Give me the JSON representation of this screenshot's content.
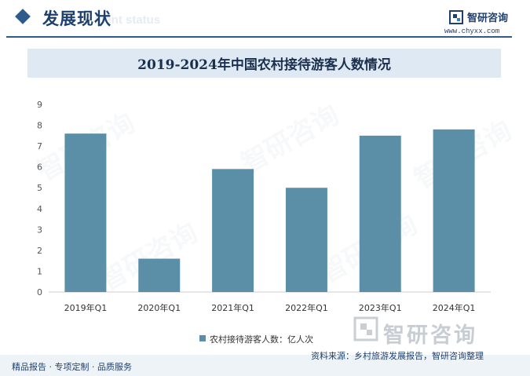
{
  "header": {
    "section_title": "发展现状",
    "section_ghost": "ment status",
    "brand_name": "智研咨询",
    "brand_url": "www.chyxx.com"
  },
  "watermark_text": "智研咨询",
  "chart_data": {
    "type": "bar",
    "title": "2019-2024年中国农村接待游客人数情况",
    "categories": [
      "2019年Q1",
      "2020年Q1",
      "2021年Q1",
      "2022年Q1",
      "2023年Q1",
      "2024年Q1"
    ],
    "series": [
      {
        "name": "农村接待游客人数：亿人次",
        "values": [
          7.6,
          1.6,
          5.9,
          5.0,
          7.5,
          7.8
        ],
        "color": "#5b8fa8"
      }
    ],
    "ylim": [
      0,
      9
    ],
    "yticks": [
      0,
      1,
      2,
      3,
      4,
      5,
      6,
      7,
      8,
      9
    ],
    "grid": false,
    "legend_position": "bottom"
  },
  "footer": {
    "left": "精品报告 · 专项定制 · 品质服务",
    "source": "资料来源：乡村旅游发展报告，智研咨询整理"
  }
}
